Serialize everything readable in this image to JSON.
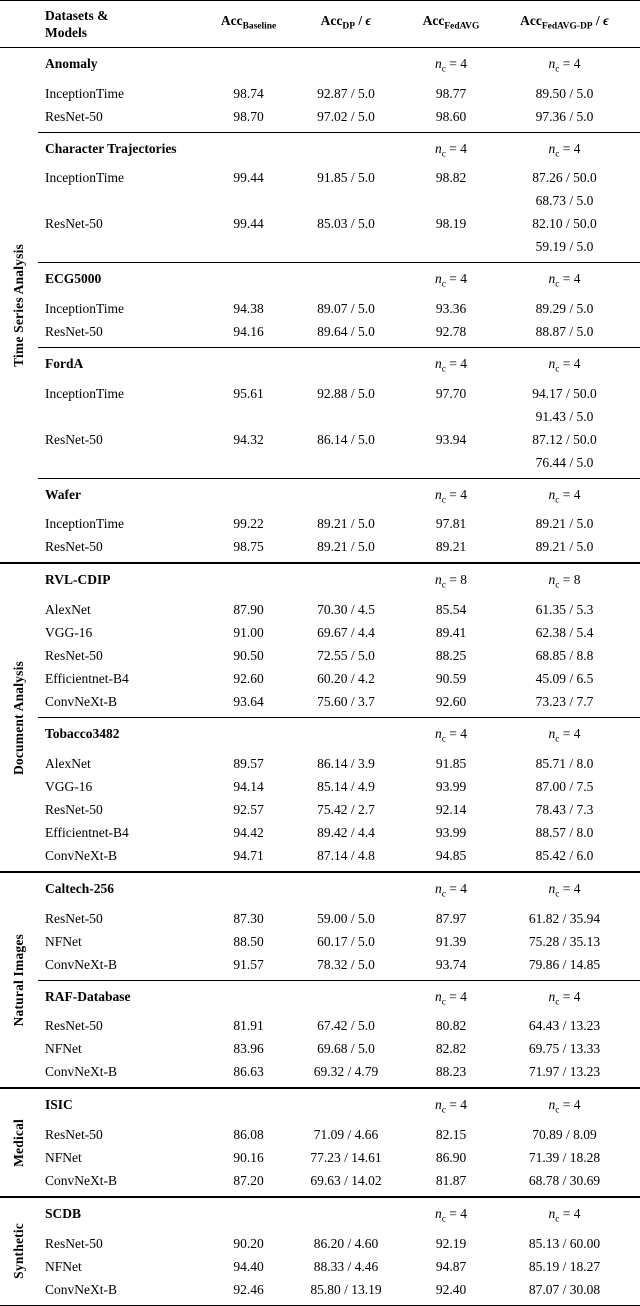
{
  "table": {
    "header": {
      "col_datasets": "Datasets &\nModels",
      "cols": [
        {
          "main": "Acc",
          "sub": "Baseline",
          "suffix": ""
        },
        {
          "main": "Acc",
          "sub": "DP",
          "suffix": " / ϵ"
        },
        {
          "main": "Acc",
          "sub": "FedAVG",
          "suffix": ""
        },
        {
          "main": "Acc",
          "sub": "FedAVG-DP",
          "suffix": " / ϵ"
        }
      ]
    },
    "sections": [
      {
        "label": "Time Series Analysis",
        "groups": [
          {
            "dataset": "Anomaly",
            "nc_fedavg": "n_c = 4",
            "nc_fedavg_dp": "n_c = 4",
            "rows": [
              {
                "model": "InceptionTime",
                "baseline": "98.74",
                "dp": "92.87 / 5.0",
                "fedavg": "98.77",
                "fedavg_dp": [
                  "89.50 / 5.0"
                ]
              },
              {
                "model": "ResNet-50",
                "baseline": "98.70",
                "dp": "97.02 / 5.0",
                "fedavg": "98.60",
                "fedavg_dp": [
                  "97.36 / 5.0"
                ]
              }
            ]
          },
          {
            "dataset": "Character Trajectories",
            "nc_fedavg": "n_c = 4",
            "nc_fedavg_dp": "n_c = 4",
            "rows": [
              {
                "model": "InceptionTime",
                "baseline": "99.44",
                "dp": "91.85 / 5.0",
                "fedavg": "98.82",
                "fedavg_dp": [
                  "87.26 / 50.0",
                  "68.73 / 5.0"
                ]
              },
              {
                "model": "ResNet-50",
                "baseline": "99.44",
                "dp": "85.03 / 5.0",
                "fedavg": "98.19",
                "fedavg_dp": [
                  "82.10 / 50.0",
                  "59.19 / 5.0"
                ]
              }
            ]
          },
          {
            "dataset": "ECG5000",
            "nc_fedavg": "n_c = 4",
            "nc_fedavg_dp": "n_c = 4",
            "rows": [
              {
                "model": "InceptionTime",
                "baseline": "94.38",
                "dp": "89.07 / 5.0",
                "fedavg": "93.36",
                "fedavg_dp": [
                  "89.29 / 5.0"
                ]
              },
              {
                "model": "ResNet-50",
                "baseline": "94.16",
                "dp": "89.64 / 5.0",
                "fedavg": "92.78",
                "fedavg_dp": [
                  "88.87 / 5.0"
                ]
              }
            ]
          },
          {
            "dataset": "FordA",
            "nc_fedavg": "n_c = 4",
            "nc_fedavg_dp": "n_c = 4",
            "rows": [
              {
                "model": "InceptionTime",
                "baseline": "95.61",
                "dp": "92.88 / 5.0",
                "fedavg": "97.70",
                "fedavg_dp": [
                  "94.17 / 50.0",
                  "91.43 / 5.0"
                ]
              },
              {
                "model": "ResNet-50",
                "baseline": "94.32",
                "dp": "86.14 / 5.0",
                "fedavg": "93.94",
                "fedavg_dp": [
                  "87.12 / 50.0",
                  "76.44 / 5.0"
                ]
              }
            ]
          },
          {
            "dataset": "Wafer",
            "nc_fedavg": "n_c = 4",
            "nc_fedavg_dp": "n_c = 4",
            "rows": [
              {
                "model": "InceptionTime",
                "baseline": "99.22",
                "dp": "89.21 / 5.0",
                "fedavg": "97.81",
                "fedavg_dp": [
                  "89.21 / 5.0"
                ]
              },
              {
                "model": "ResNet-50",
                "baseline": "98.75",
                "dp": "89.21 / 5.0",
                "fedavg": "89.21",
                "fedavg_dp": [
                  "89.21 / 5.0"
                ]
              }
            ]
          }
        ]
      },
      {
        "label": "Document Analysis",
        "groups": [
          {
            "dataset": "RVL-CDIP",
            "nc_fedavg": "n_c = 8",
            "nc_fedavg_dp": "n_c = 8",
            "rows": [
              {
                "model": "AlexNet",
                "baseline": "87.90",
                "dp": "70.30 / 4.5",
                "fedavg": "85.54",
                "fedavg_dp": [
                  "61.35 / 5.3"
                ]
              },
              {
                "model": "VGG-16",
                "baseline": "91.00",
                "dp": "69.67 / 4.4",
                "fedavg": "89.41",
                "fedavg_dp": [
                  "62.38 / 5.4"
                ]
              },
              {
                "model": "ResNet-50",
                "baseline": "90.50",
                "dp": "72.55 / 5.0",
                "fedavg": "88.25",
                "fedavg_dp": [
                  "68.85 / 8.8"
                ]
              },
              {
                "model": "Efficientnet-B4",
                "baseline": "92.60",
                "dp": "60.20 / 4.2",
                "fedavg": "90.59",
                "fedavg_dp": [
                  "45.09 / 6.5"
                ]
              },
              {
                "model": "ConvNeXt-B",
                "baseline": "93.64",
                "dp": "75.60 / 3.7",
                "fedavg": "92.60",
                "fedavg_dp": [
                  "73.23 / 7.7"
                ]
              }
            ]
          },
          {
            "dataset": "Tobacco3482",
            "nc_fedavg": "n_c = 4",
            "nc_fedavg_dp": "n_c = 4",
            "rows": [
              {
                "model": "AlexNet",
                "baseline": "89.57",
                "dp": "86.14 / 3.9",
                "fedavg": "91.85",
                "fedavg_dp": [
                  "85.71 / 8.0"
                ]
              },
              {
                "model": "VGG-16",
                "baseline": "94.14",
                "dp": "85.14 / 4.9",
                "fedavg": "93.99",
                "fedavg_dp": [
                  "87.00 / 7.5"
                ]
              },
              {
                "model": "ResNet-50",
                "baseline": "92.57",
                "dp": "75.42 / 2.7",
                "fedavg": "92.14",
                "fedavg_dp": [
                  "78.43 / 7.3"
                ]
              },
              {
                "model": "Efficientnet-B4",
                "baseline": "94.42",
                "dp": "89.42 / 4.4",
                "fedavg": "93.99",
                "fedavg_dp": [
                  "88.57 / 8.0"
                ]
              },
              {
                "model": "ConvNeXt-B",
                "baseline": "94.71",
                "dp": "87.14 / 4.8",
                "fedavg": "94.85",
                "fedavg_dp": [
                  "85.42 / 6.0"
                ]
              }
            ]
          }
        ]
      },
      {
        "label": "Natural Images",
        "groups": [
          {
            "dataset": "Caltech-256",
            "nc_fedavg": "n_c = 4",
            "nc_fedavg_dp": "n_c = 4",
            "rows": [
              {
                "model": "ResNet-50",
                "baseline": "87.30",
                "dp": "59.00 / 5.0",
                "fedavg": "87.97",
                "fedavg_dp": [
                  "61.82 / 35.94"
                ]
              },
              {
                "model": "NFNet",
                "baseline": "88.50",
                "dp": "60.17 / 5.0",
                "fedavg": "91.39",
                "fedavg_dp": [
                  "75.28 / 35.13"
                ]
              },
              {
                "model": "ConvNeXt-B",
                "baseline": "91.57",
                "dp": "78.32 / 5.0",
                "fedavg": "93.74",
                "fedavg_dp": [
                  "79.86 / 14.85"
                ]
              }
            ]
          },
          {
            "dataset": "RAF-Database",
            "nc_fedavg": "n_c = 4",
            "nc_fedavg_dp": "n_c = 4",
            "rows": [
              {
                "model": "ResNet-50",
                "baseline": "81.91",
                "dp": "67.42 / 5.0",
                "fedavg": "80.82",
                "fedavg_dp": [
                  "64.43 / 13.23"
                ]
              },
              {
                "model": "NFNet",
                "baseline": "83.96",
                "dp": "69.68 / 5.0",
                "fedavg": "82.82",
                "fedavg_dp": [
                  "69.75 / 13.33"
                ]
              },
              {
                "model": "ConvNeXt-B",
                "baseline": "86.63",
                "dp": "69.32 / 4.79",
                "fedavg": "88.23",
                "fedavg_dp": [
                  "71.97 / 13.23"
                ]
              }
            ]
          }
        ]
      },
      {
        "label": "Medical",
        "groups": [
          {
            "dataset": "ISIC",
            "nc_fedavg": "n_c = 4",
            "nc_fedavg_dp": "n_c = 4",
            "rows": [
              {
                "model": "ResNet-50",
                "baseline": "86.08",
                "dp": "71.09 / 4.66",
                "fedavg": "82.15",
                "fedavg_dp": [
                  "70.89 / 8.09"
                ]
              },
              {
                "model": "NFNet",
                "baseline": "90.16",
                "dp": "77.23 / 14.61",
                "fedavg": "86.90",
                "fedavg_dp": [
                  "71.39 / 18.28"
                ]
              },
              {
                "model": "ConvNeXt-B",
                "baseline": "87.20",
                "dp": "69.63 / 14.02",
                "fedavg": "81.87",
                "fedavg_dp": [
                  "68.78 / 30.69"
                ]
              }
            ]
          }
        ]
      },
      {
        "label": "Synthetic",
        "groups": [
          {
            "dataset": "SCDB",
            "nc_fedavg": "n_c = 4",
            "nc_fedavg_dp": "n_c = 4",
            "rows": [
              {
                "model": "ResNet-50",
                "baseline": "90.20",
                "dp": "86.20 / 4.60",
                "fedavg": "92.19",
                "fedavg_dp": [
                  "85.13 / 60.00"
                ]
              },
              {
                "model": "NFNet",
                "baseline": "94.40",
                "dp": "88.33 / 4.46",
                "fedavg": "94.87",
                "fedavg_dp": [
                  "85.19 / 18.27"
                ]
              },
              {
                "model": "ConvNeXt-B",
                "baseline": "92.46",
                "dp": "85.80 / 13.19",
                "fedavg": "92.40",
                "fedavg_dp": [
                  "87.07 / 30.08"
                ]
              }
            ]
          }
        ]
      }
    ]
  }
}
